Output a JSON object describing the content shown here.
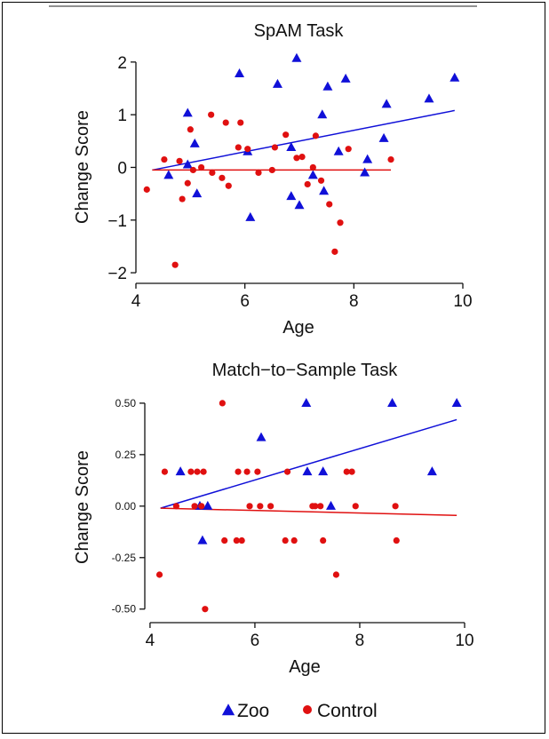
{
  "colors": {
    "zoo": "#1010d8",
    "control": "#e01010",
    "axis": "#111111"
  },
  "legend": {
    "items": [
      {
        "label": "Zoo",
        "marker": "triangle",
        "series": "zoo"
      },
      {
        "label": "Control",
        "marker": "circle",
        "series": "control"
      }
    ]
  },
  "chart_data": [
    {
      "type": "scatter",
      "title": "SpAM Task",
      "xlabel": "Age",
      "ylabel": "Change Score",
      "xlim": [
        4,
        10
      ],
      "ylim": [
        -2.1,
        2.2
      ],
      "xticks": [
        4,
        6,
        8,
        10
      ],
      "xtick_labels": [
        "4",
        "6",
        "8",
        "10"
      ],
      "yticks": [
        -2,
        -1,
        0,
        1,
        2
      ],
      "ytick_labels": [
        "−2",
        "−1",
        "0",
        "1",
        "2"
      ],
      "series": [
        {
          "key": "zoo",
          "name": "Zoo",
          "marker": "triangle",
          "points": [
            [
              4.6,
              -0.15
            ],
            [
              4.95,
              1.03
            ],
            [
              4.95,
              0.05
            ],
            [
              5.08,
              0.45
            ],
            [
              5.12,
              -0.5
            ],
            [
              5.9,
              1.78
            ],
            [
              6.05,
              0.3
            ],
            [
              6.1,
              -0.95
            ],
            [
              6.6,
              1.58
            ],
            [
              6.85,
              0.38
            ],
            [
              6.85,
              -0.55
            ],
            [
              6.95,
              2.07
            ],
            [
              7.0,
              -0.72
            ],
            [
              7.25,
              -0.15
            ],
            [
              7.42,
              1.0
            ],
            [
              7.45,
              -0.45
            ],
            [
              7.52,
              1.53
            ],
            [
              7.72,
              0.3
            ],
            [
              7.85,
              1.68
            ],
            [
              8.2,
              -0.1
            ],
            [
              8.25,
              0.15
            ],
            [
              8.55,
              0.55
            ],
            [
              8.6,
              1.2
            ],
            [
              9.38,
              1.3
            ],
            [
              9.85,
              1.7
            ]
          ],
          "fit": [
            [
              4.3,
              -0.05
            ],
            [
              9.85,
              1.08
            ]
          ]
        },
        {
          "key": "control",
          "name": "Control",
          "marker": "circle",
          "points": [
            [
              4.2,
              -0.42
            ],
            [
              4.52,
              0.15
            ],
            [
              4.72,
              -1.85
            ],
            [
              4.8,
              0.12
            ],
            [
              4.85,
              -0.6
            ],
            [
              4.95,
              -0.3
            ],
            [
              5.0,
              0.72
            ],
            [
              5.05,
              -0.05
            ],
            [
              5.2,
              0.0
            ],
            [
              5.38,
              1.0
            ],
            [
              5.4,
              -0.1
            ],
            [
              5.58,
              -0.2
            ],
            [
              5.65,
              0.85
            ],
            [
              5.7,
              -0.35
            ],
            [
              5.88,
              0.38
            ],
            [
              5.92,
              0.85
            ],
            [
              6.05,
              0.35
            ],
            [
              6.25,
              -0.1
            ],
            [
              6.5,
              -0.05
            ],
            [
              6.55,
              0.38
            ],
            [
              6.75,
              0.62
            ],
            [
              6.95,
              0.18
            ],
            [
              7.05,
              0.2
            ],
            [
              7.15,
              -0.32
            ],
            [
              7.25,
              0.0
            ],
            [
              7.3,
              0.6
            ],
            [
              7.4,
              -0.25
            ],
            [
              7.55,
              -0.7
            ],
            [
              7.65,
              -1.6
            ],
            [
              7.75,
              -1.05
            ],
            [
              7.9,
              0.35
            ],
            [
              8.68,
              0.15
            ]
          ],
          "fit": [
            [
              4.3,
              -0.05
            ],
            [
              8.68,
              -0.05
            ]
          ]
        }
      ]
    },
    {
      "type": "scatter",
      "title": "Match−to−Sample Task",
      "xlabel": "Age",
      "ylabel": "Change Score",
      "xlim": [
        3.9,
        10
      ],
      "ylim": [
        -0.54,
        0.56
      ],
      "xticks": [
        4,
        6,
        8,
        10
      ],
      "xtick_labels": [
        "4",
        "6",
        "8",
        "10"
      ],
      "yticks": [
        -0.5,
        -0.25,
        0,
        0.25,
        0.5
      ],
      "ytick_labels": [
        "-0.50",
        "-0.25",
        "0.00",
        "0.25",
        "0.50"
      ],
      "series": [
        {
          "key": "zoo",
          "name": "Zoo",
          "marker": "triangle",
          "points": [
            [
              4.58,
              0.167
            ],
            [
              4.95,
              0.0
            ],
            [
              5.0,
              -0.167
            ],
            [
              5.1,
              0.0
            ],
            [
              6.12,
              0.333
            ],
            [
              6.98,
              0.5
            ],
            [
              7.0,
              0.167
            ],
            [
              7.3,
              0.167
            ],
            [
              7.45,
              0.0
            ],
            [
              8.62,
              0.5
            ],
            [
              9.38,
              0.167
            ],
            [
              9.85,
              0.5
            ]
          ],
          "fit": [
            [
              4.2,
              -0.01
            ],
            [
              9.85,
              0.42
            ]
          ]
        },
        {
          "key": "control",
          "name": "Control",
          "marker": "circle",
          "points": [
            [
              4.18,
              -0.333
            ],
            [
              4.28,
              0.167
            ],
            [
              4.5,
              0.0
            ],
            [
              4.78,
              0.167
            ],
            [
              4.85,
              0.0
            ],
            [
              4.9,
              0.167
            ],
            [
              4.98,
              0.0
            ],
            [
              5.02,
              0.167
            ],
            [
              5.05,
              -0.5
            ],
            [
              5.38,
              0.5
            ],
            [
              5.42,
              -0.167
            ],
            [
              5.65,
              -0.167
            ],
            [
              5.68,
              0.167
            ],
            [
              5.75,
              -0.167
            ],
            [
              5.85,
              0.167
            ],
            [
              5.9,
              0.0
            ],
            [
              6.05,
              0.167
            ],
            [
              6.1,
              0.0
            ],
            [
              6.3,
              0.0
            ],
            [
              6.58,
              -0.167
            ],
            [
              6.62,
              0.167
            ],
            [
              6.75,
              -0.167
            ],
            [
              7.1,
              0.0
            ],
            [
              7.15,
              0.0
            ],
            [
              7.25,
              0.0
            ],
            [
              7.3,
              -0.167
            ],
            [
              7.55,
              -0.333
            ],
            [
              7.75,
              0.167
            ],
            [
              7.85,
              0.167
            ],
            [
              7.92,
              0.0
            ],
            [
              8.68,
              0.0
            ],
            [
              8.7,
              -0.167
            ]
          ],
          "fit": [
            [
              4.2,
              -0.01
            ],
            [
              9.85,
              -0.045
            ]
          ]
        }
      ]
    }
  ]
}
